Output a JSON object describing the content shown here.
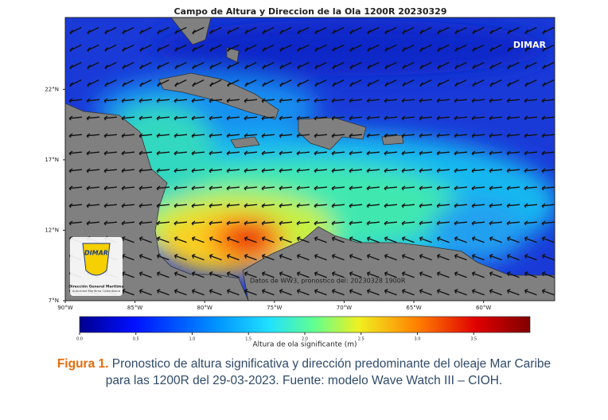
{
  "map": {
    "title": "Campo de Altura y Direccion de la Ola 1200R 20230329",
    "watermark": "DIMAR",
    "source_note": "Datos de WW3, pronostico del: 20230328 1900R",
    "logo": {
      "name": "DIMAR",
      "line1": "Dirección General Marítima",
      "line2": "Autoridad Marítima Colombiana"
    },
    "ylim": [
      7,
      27.1
    ],
    "yticks": [
      {
        "value": 22,
        "label": "22°N"
      },
      {
        "value": 17,
        "label": "17°N"
      },
      {
        "value": 12,
        "label": "12°N"
      },
      {
        "value": 7,
        "label": "7°N"
      }
    ],
    "xlim": [
      -90,
      -54.9
    ],
    "xticks": [
      {
        "value": -90,
        "label": "90°W"
      },
      {
        "value": -85,
        "label": "85°W"
      },
      {
        "value": -80,
        "label": "80°W"
      },
      {
        "value": -75,
        "label": "75°W"
      },
      {
        "value": -70,
        "label": "70°W"
      },
      {
        "value": -65,
        "label": "65°W"
      },
      {
        "value": -60,
        "label": "60°W"
      }
    ]
  },
  "colorbar": {
    "label": "Altura de ola significante (m)",
    "lim": [
      0,
      4
    ],
    "ticks": [
      {
        "value": 0,
        "label": "0.0"
      },
      {
        "value": 0.5,
        "label": "0.5"
      },
      {
        "value": 1,
        "label": "1.0"
      },
      {
        "value": 1.5,
        "label": "1.5"
      },
      {
        "value": 2,
        "label": "2.0"
      },
      {
        "value": 2.5,
        "label": "2.5"
      },
      {
        "value": 3,
        "label": "3.0"
      },
      {
        "value": 3.5,
        "label": "3.5"
      }
    ]
  },
  "caption": {
    "label": "Figura 1.",
    "text": "Pronostico de altura significativa y dirección predominante del oleaje Mar Caribe para las 1200R del 29-03-2023. Fuente: modelo Wave Watch III – CIOH."
  }
}
